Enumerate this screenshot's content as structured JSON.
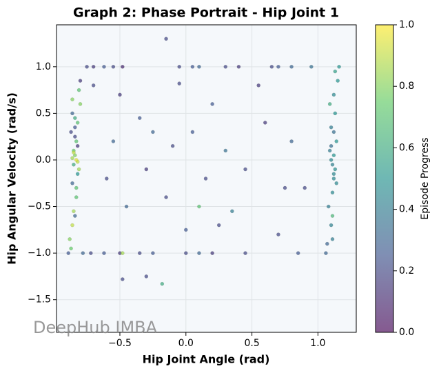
{
  "chart_data": {
    "type": "scatter",
    "title": "Graph 2: Phase Portrait - Hip Joint 1",
    "x_label": "Hip Joint Angle (rad)",
    "y_label": "Hip Angular Velocity (rad/s)",
    "colorbar_label": "Episode Progress",
    "watermark": "DeepHub IMBA",
    "colormap": "viridis",
    "grid": true,
    "xlim": [
      -0.98,
      1.29
    ],
    "ylim": [
      -1.85,
      1.45
    ],
    "clim": [
      0,
      1
    ],
    "xticks": [
      {
        "value": -0.5,
        "label": "−0.5"
      },
      {
        "value": 0,
        "label": "0.0"
      },
      {
        "value": 0.5,
        "label": "0.5"
      },
      {
        "value": 1,
        "label": "1.0"
      }
    ],
    "yticks": [
      {
        "value": -1.5,
        "label": "−1.5"
      },
      {
        "value": -1,
        "label": "−1.0"
      },
      {
        "value": -0.5,
        "label": "−0.5"
      },
      {
        "value": 0,
        "label": "0.0"
      },
      {
        "value": 0.5,
        "label": "0.5"
      },
      {
        "value": 1,
        "label": "1.0"
      }
    ],
    "cticks": [
      {
        "value": 0,
        "label": "0.0"
      },
      {
        "value": 0.2,
        "label": "0.2"
      },
      {
        "value": 0.4,
        "label": "0.4"
      },
      {
        "value": 0.6,
        "label": "0.6"
      },
      {
        "value": 0.8,
        "label": "0.8"
      },
      {
        "value": 1,
        "label": "1.0"
      }
    ],
    "x": [
      -0.86,
      -0.84,
      -0.82,
      -0.85,
      -0.83,
      -0.81,
      -0.87,
      -0.84,
      -0.8,
      -0.86,
      -0.83,
      -0.85,
      -0.82,
      -0.84,
      -0.86,
      -0.81,
      -0.83,
      -0.85,
      -0.88,
      -0.84,
      -0.82,
      -0.86,
      -0.8,
      -0.83,
      -0.85,
      -0.87,
      -0.84,
      -0.82,
      -0.89,
      -0.86,
      1.1,
      1.12,
      1.11,
      1.13,
      1.09,
      1.12,
      1.14,
      1.1,
      1.11,
      1.13,
      1.08,
      1.12,
      1.15,
      1.1,
      1.11,
      1.13,
      1.06,
      1.12,
      1.14,
      1.09,
      1.11,
      1.16,
      1.1,
      1.12,
      1.07,
      -0.75,
      -0.7,
      -0.62,
      -0.55,
      -0.48,
      -0.05,
      0.05,
      0.1,
      0.3,
      0.4,
      0.65,
      0.7,
      0.8,
      0.95,
      -0.78,
      -0.72,
      -0.62,
      -0.5,
      -0.48,
      -0.35,
      -0.25,
      0.0,
      0.1,
      0.2,
      0.45,
      0.85,
      -0.7,
      -0.5,
      -0.35,
      -0.25,
      -0.1,
      -0.3,
      -0.45,
      -0.15,
      0.0,
      0.15,
      0.3,
      0.45,
      0.6,
      0.7,
      0.8,
      0.2,
      -0.05,
      0.35,
      -0.6,
      0.55,
      0.9,
      -0.15,
      -0.3,
      -0.48,
      -0.18,
      0.25,
      0.1,
      0.75,
      -0.55,
      0.05
    ],
    "y": [
      0.02,
      0.05,
      -0.02,
      0.1,
      0.2,
      -0.1,
      0.3,
      0.45,
      0.6,
      -0.25,
      -0.4,
      -0.55,
      0.15,
      0.35,
      -0.7,
      0.75,
      0.0,
      -0.05,
      -0.85,
      0.25,
      -0.15,
      0.5,
      0.85,
      -0.3,
      0.08,
      -0.95,
      -0.6,
      0.4,
      -1.0,
      0.65,
      0.0,
      0.05,
      -0.05,
      -0.1,
      0.1,
      -0.2,
      0.2,
      0.35,
      -0.35,
      0.5,
      -0.5,
      0.7,
      0.85,
      -0.7,
      -0.85,
      0.95,
      -1.0,
      0.3,
      -0.25,
      0.6,
      -0.6,
      1.0,
      0.15,
      -0.15,
      -0.9,
      1.0,
      1.0,
      1.0,
      1.0,
      1.0,
      1.0,
      1.0,
      1.0,
      1.0,
      1.0,
      1.0,
      1.0,
      1.0,
      1.0,
      -1.0,
      -1.0,
      -1.0,
      -1.0,
      -1.0,
      -1.0,
      -1.0,
      -1.0,
      -1.0,
      -1.0,
      -1.0,
      -1.0,
      0.8,
      0.7,
      0.45,
      0.3,
      0.15,
      -0.1,
      -0.5,
      -0.4,
      -0.75,
      -0.2,
      0.1,
      -0.1,
      0.4,
      -0.8,
      0.2,
      0.6,
      0.82,
      -0.55,
      -0.2,
      0.8,
      -0.3,
      1.3,
      -1.25,
      -1.28,
      -1.33,
      -0.7,
      -0.5,
      -0.3,
      0.2,
      0.3
    ],
    "c": [
      0.85,
      0.8,
      0.9,
      0.75,
      0.7,
      0.85,
      0.2,
      0.6,
      0.8,
      0.3,
      0.7,
      0.85,
      0.15,
      0.25,
      0.9,
      0.7,
      0.95,
      0.6,
      0.8,
      0.2,
      0.5,
      0.3,
      0.15,
      0.7,
      0.9,
      0.75,
      0.3,
      0.7,
      0.25,
      0.8,
      0.45,
      0.5,
      0.42,
      0.48,
      0.4,
      0.45,
      0.5,
      0.4,
      0.45,
      0.5,
      0.4,
      0.45,
      0.5,
      0.42,
      0.4,
      0.55,
      0.3,
      0.35,
      0.45,
      0.6,
      0.65,
      0.5,
      0.35,
      0.45,
      0.3,
      0.2,
      0.15,
      0.25,
      0.2,
      0.1,
      0.2,
      0.25,
      0.3,
      0.2,
      0.15,
      0.2,
      0.25,
      0.3,
      0.35,
      0.3,
      0.2,
      0.25,
      0.15,
      0.85,
      0.2,
      0.25,
      0.2,
      0.3,
      0.15,
      0.2,
      0.25,
      0.2,
      0.15,
      0.25,
      0.3,
      0.2,
      0.15,
      0.3,
      0.2,
      0.25,
      0.2,
      0.35,
      0.2,
      0.15,
      0.2,
      0.3,
      0.25,
      0.2,
      0.4,
      0.2,
      0.15,
      0.2,
      0.2,
      0.2,
      0.2,
      0.6,
      0.2,
      0.7,
      0.2,
      0.3,
      0.25
    ]
  }
}
